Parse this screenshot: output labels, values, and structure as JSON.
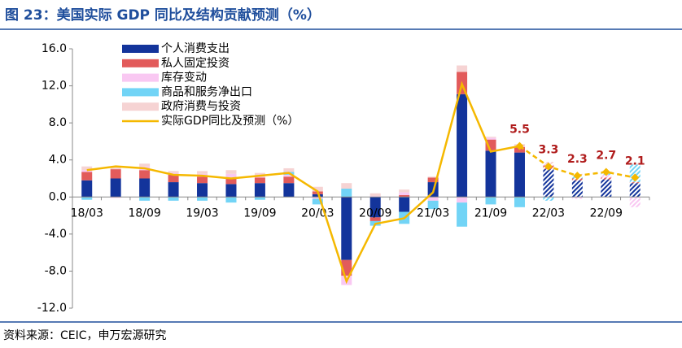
{
  "chart_data": {
    "type": "stacked_bar_line",
    "title": "图 23：美国实际 GDP 同比及结构贡献预测（%）",
    "source": "资料来源：CEIC，申万宏源研究",
    "categories": [
      "18/03",
      null,
      "18/09",
      null,
      "19/03",
      null,
      "19/09",
      null,
      "20/03",
      null,
      "20/09",
      null,
      "21/03",
      null,
      "21/09",
      null,
      "22/03",
      null,
      "22/09",
      null
    ],
    "ylim": [
      -12,
      16
    ],
    "yticks": [
      {
        "value": -12,
        "label": "-12.0"
      },
      {
        "value": -8,
        "label": "-8.0"
      },
      {
        "value": -4,
        "label": "-4.0"
      },
      {
        "value": 0,
        "label": "0.0"
      },
      {
        "value": 4,
        "label": "4.0"
      },
      {
        "value": 8,
        "label": "8.0"
      },
      {
        "value": 12,
        "label": "12.0"
      },
      {
        "value": 16,
        "label": "16.0"
      }
    ],
    "forecast_from_index": 16,
    "labels_from_index": 15,
    "series": [
      {
        "name": "个人消费支出",
        "color": "#13349b",
        "values": [
          1.8,
          2.0,
          2.0,
          1.6,
          1.5,
          1.4,
          1.5,
          1.5,
          0.3,
          -6.8,
          -2.2,
          -1.6,
          1.6,
          11.1,
          5.0,
          4.8,
          3.0,
          1.8,
          1.9,
          1.5
        ]
      },
      {
        "name": "私人固定投资",
        "color": "#e25b5b",
        "values": [
          0.9,
          1.0,
          0.9,
          0.8,
          0.7,
          0.7,
          0.6,
          0.7,
          0.3,
          -1.7,
          -0.4,
          0.2,
          0.5,
          2.4,
          1.2,
          0.6,
          0.4,
          0.2,
          0.2,
          0.1
        ]
      },
      {
        "name": "库存变动",
        "color": "#f9c8f2",
        "values": [
          0.2,
          -0.1,
          0.4,
          0.2,
          0.3,
          0.4,
          0.1,
          0.2,
          -0.2,
          -1.0,
          0.1,
          0.3,
          -0.4,
          -0.6,
          0.2,
          0.1,
          0.1,
          -0.2,
          0.3,
          -1.1
        ]
      },
      {
        "name": "商品和服务净出口",
        "color": "#72d4f6",
        "values": [
          -0.3,
          0.0,
          -0.4,
          -0.4,
          -0.4,
          -0.6,
          -0.3,
          0.3,
          -0.6,
          0.9,
          -0.5,
          -1.3,
          -0.9,
          -2.6,
          -0.8,
          -1.1,
          -0.4,
          0.3,
          0.2,
          1.9
        ]
      },
      {
        "name": "政府消费与投资",
        "color": "#f6d3d3",
        "values": [
          0.4,
          0.3,
          0.3,
          0.2,
          0.3,
          0.4,
          0.4,
          0.4,
          0.5,
          0.6,
          0.3,
          0.3,
          0.1,
          0.7,
          0.1,
          0.2,
          0.3,
          0.2,
          0.2,
          0.2
        ]
      },
      {
        "name": "实际GDP同比及预测（%）",
        "color": "#f5b800",
        "type": "line",
        "values": [
          2.9,
          3.3,
          3.1,
          2.4,
          2.3,
          2.0,
          2.3,
          2.6,
          0.6,
          -9.1,
          -2.9,
          -2.3,
          0.5,
          12.2,
          4.9,
          5.5,
          3.3,
          2.3,
          2.7,
          2.1
        ]
      }
    ]
  }
}
